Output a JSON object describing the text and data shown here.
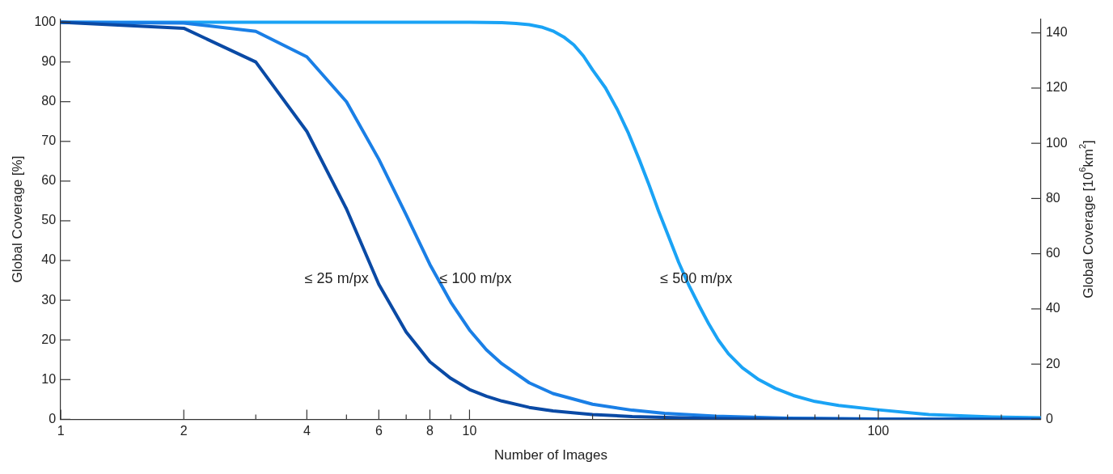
{
  "chart_data": {
    "type": "line",
    "xlabel": "Number of Images",
    "ylabel": "Global Coverage [%]",
    "y2label": "Global Coverage [10$^{6}$km$^{2}$]",
    "log": "x",
    "grid": false,
    "legend": false,
    "marker": "none",
    "line_style": "solid",
    "xlim": [
      1,
      250
    ],
    "xticks": [
      1,
      2,
      {
        "value": 3,
        "label": null
      },
      4,
      {
        "value": 5,
        "label": null
      },
      6,
      {
        "value": 7,
        "label": null
      },
      8,
      {
        "value": 9,
        "label": null
      },
      10,
      {
        "value": 20,
        "label": null
      },
      {
        "value": 30,
        "label": null
      },
      {
        "value": 40,
        "label": null
      },
      {
        "value": 50,
        "label": null
      },
      {
        "value": 60,
        "label": null
      },
      {
        "value": 70,
        "label": null
      },
      {
        "value": 80,
        "label": null
      },
      {
        "value": 90,
        "label": null
      },
      100,
      {
        "value": 200,
        "label": null
      }
    ],
    "ylim": [
      0,
      100.8
    ],
    "yticks": [
      0,
      10,
      20,
      30,
      40,
      50,
      60,
      70,
      80,
      90,
      100
    ],
    "y2lim": [
      0,
      145
    ],
    "y2ticks": [
      0,
      20,
      40,
      60,
      80,
      100,
      120,
      140
    ],
    "series": [
      {
        "name": "≤ 25 m/px",
        "color": "#0a4aa5",
        "x": [
          1,
          2,
          3,
          4,
          5,
          6,
          7,
          8,
          9,
          10,
          11,
          12,
          14,
          16,
          20,
          25,
          30,
          40,
          60,
          100,
          250
        ],
        "values": [
          100,
          98.5,
          90,
          72.5,
          53,
          34,
          22,
          14.5,
          10.3,
          7.5,
          5.8,
          4.6,
          3.0,
          2.1,
          1.2,
          0.7,
          0.5,
          0.2,
          0.1,
          0,
          0
        ]
      },
      {
        "name": "≤ 100 m/px",
        "color": "#1a7fe6",
        "x": [
          1,
          2,
          3,
          4,
          5,
          6,
          7,
          8,
          9,
          10,
          11,
          12,
          14,
          16,
          20,
          25,
          30,
          40,
          60,
          100,
          250
        ],
        "values": [
          100,
          99.8,
          97.7,
          91.3,
          80,
          65.5,
          51.5,
          39,
          29.5,
          22.5,
          17.5,
          14,
          9.2,
          6.5,
          3.8,
          2.3,
          1.5,
          0.8,
          0.3,
          0.1,
          0
        ]
      },
      {
        "name": "≤ 500 m/px",
        "color": "#1aa3f5",
        "x": [
          1,
          5,
          10,
          12,
          13,
          14,
          15,
          16,
          17,
          18,
          19,
          20,
          21.5,
          23,
          24.5,
          26,
          27.5,
          29,
          30.7,
          32.5,
          34.5,
          36.5,
          38.5,
          40.6,
          43,
          46.5,
          51,
          56,
          62,
          70,
          80,
          100,
          133,
          190,
          250
        ],
        "values": [
          100,
          100,
          100,
          99.9,
          99.7,
          99.4,
          98.8,
          97.8,
          96.3,
          94.3,
          91.5,
          88,
          83.5,
          78,
          72,
          65.5,
          59,
          52.5,
          46,
          39.5,
          33.5,
          28.5,
          24,
          20,
          16.5,
          13,
          10,
          7.8,
          6,
          4.5,
          3.5,
          2.4,
          1.2,
          0.6,
          0.4
        ]
      }
    ]
  }
}
